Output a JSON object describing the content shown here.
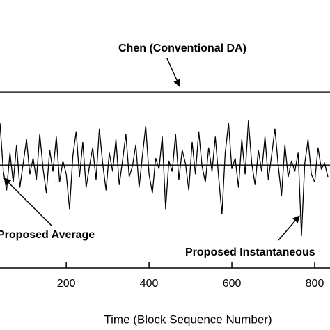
{
  "chart_data": {
    "type": "line",
    "xlabel": "Time (Block Sequence Number)",
    "xlim": [
      40,
      837
    ],
    "ylim": [
      0,
      10
    ],
    "xticks": [
      200,
      400,
      600,
      800
    ],
    "annotations": [
      "Chen  (Conventional DA)",
      "Proposed Average",
      "Proposed Instantaneous"
    ],
    "series": [
      {
        "color": "#000000",
        "x": [
          40,
          837
        ],
        "values": [
          6.57,
          6.57
        ]
      },
      {
        "color": "#000000",
        "x": [
          40,
          837
        ],
        "values": [
          3.84,
          3.84
        ]
      },
      {
        "color": "#000000",
        "x": [
          40,
          48,
          56,
          64,
          72,
          80,
          88,
          96,
          104,
          112,
          120,
          128,
          136,
          144,
          152,
          160,
          168,
          176,
          184,
          192,
          200,
          208,
          216,
          224,
          232,
          240,
          248,
          256,
          264,
          272,
          280,
          288,
          296,
          304,
          312,
          320,
          328,
          336,
          344,
          352,
          360,
          368,
          376,
          384,
          392,
          400,
          408,
          416,
          424,
          432,
          440,
          448,
          456,
          464,
          472,
          480,
          488,
          496,
          504,
          512,
          520,
          528,
          536,
          544,
          552,
          560,
          568,
          576,
          584,
          592,
          600,
          608,
          616,
          624,
          632,
          640,
          648,
          656,
          664,
          672,
          680,
          688,
          696,
          704,
          712,
          720,
          728,
          736,
          744,
          752,
          760,
          768,
          776,
          784,
          792,
          800,
          808,
          816,
          824,
          832
        ],
        "values": [
          5.4,
          3.6,
          2.9,
          4.3,
          3.2,
          4.6,
          3.0,
          3.9,
          4.8,
          3.5,
          4.1,
          3.3,
          5.0,
          3.7,
          2.8,
          4.4,
          3.6,
          4.9,
          3.2,
          4.0,
          3.5,
          2.2,
          4.2,
          5.1,
          3.4,
          4.7,
          3.0,
          3.8,
          4.5,
          3.3,
          5.2,
          3.9,
          2.9,
          4.3,
          3.6,
          4.8,
          3.1,
          4.0,
          5.0,
          3.4,
          3.8,
          4.6,
          3.0,
          4.2,
          5.3,
          3.5,
          2.8,
          4.1,
          3.7,
          4.9,
          2.2,
          4.0,
          3.6,
          5.0,
          3.3,
          4.4,
          3.9,
          2.9,
          4.7,
          3.5,
          5.1,
          3.8,
          3.2,
          4.5,
          3.6,
          4.9,
          3.4,
          2.0,
          4.3,
          5.4,
          3.7,
          4.1,
          3.0,
          4.8,
          3.5,
          5.5,
          3.9,
          3.1,
          4.4,
          3.6,
          4.9,
          3.3,
          4.2,
          5.2,
          3.8,
          2.7,
          4.6,
          3.4,
          4.0,
          3.6,
          4.3,
          1.2,
          3.9,
          4.8,
          3.5,
          3.2,
          4.5,
          3.7,
          3.9,
          3.4
        ]
      }
    ]
  }
}
